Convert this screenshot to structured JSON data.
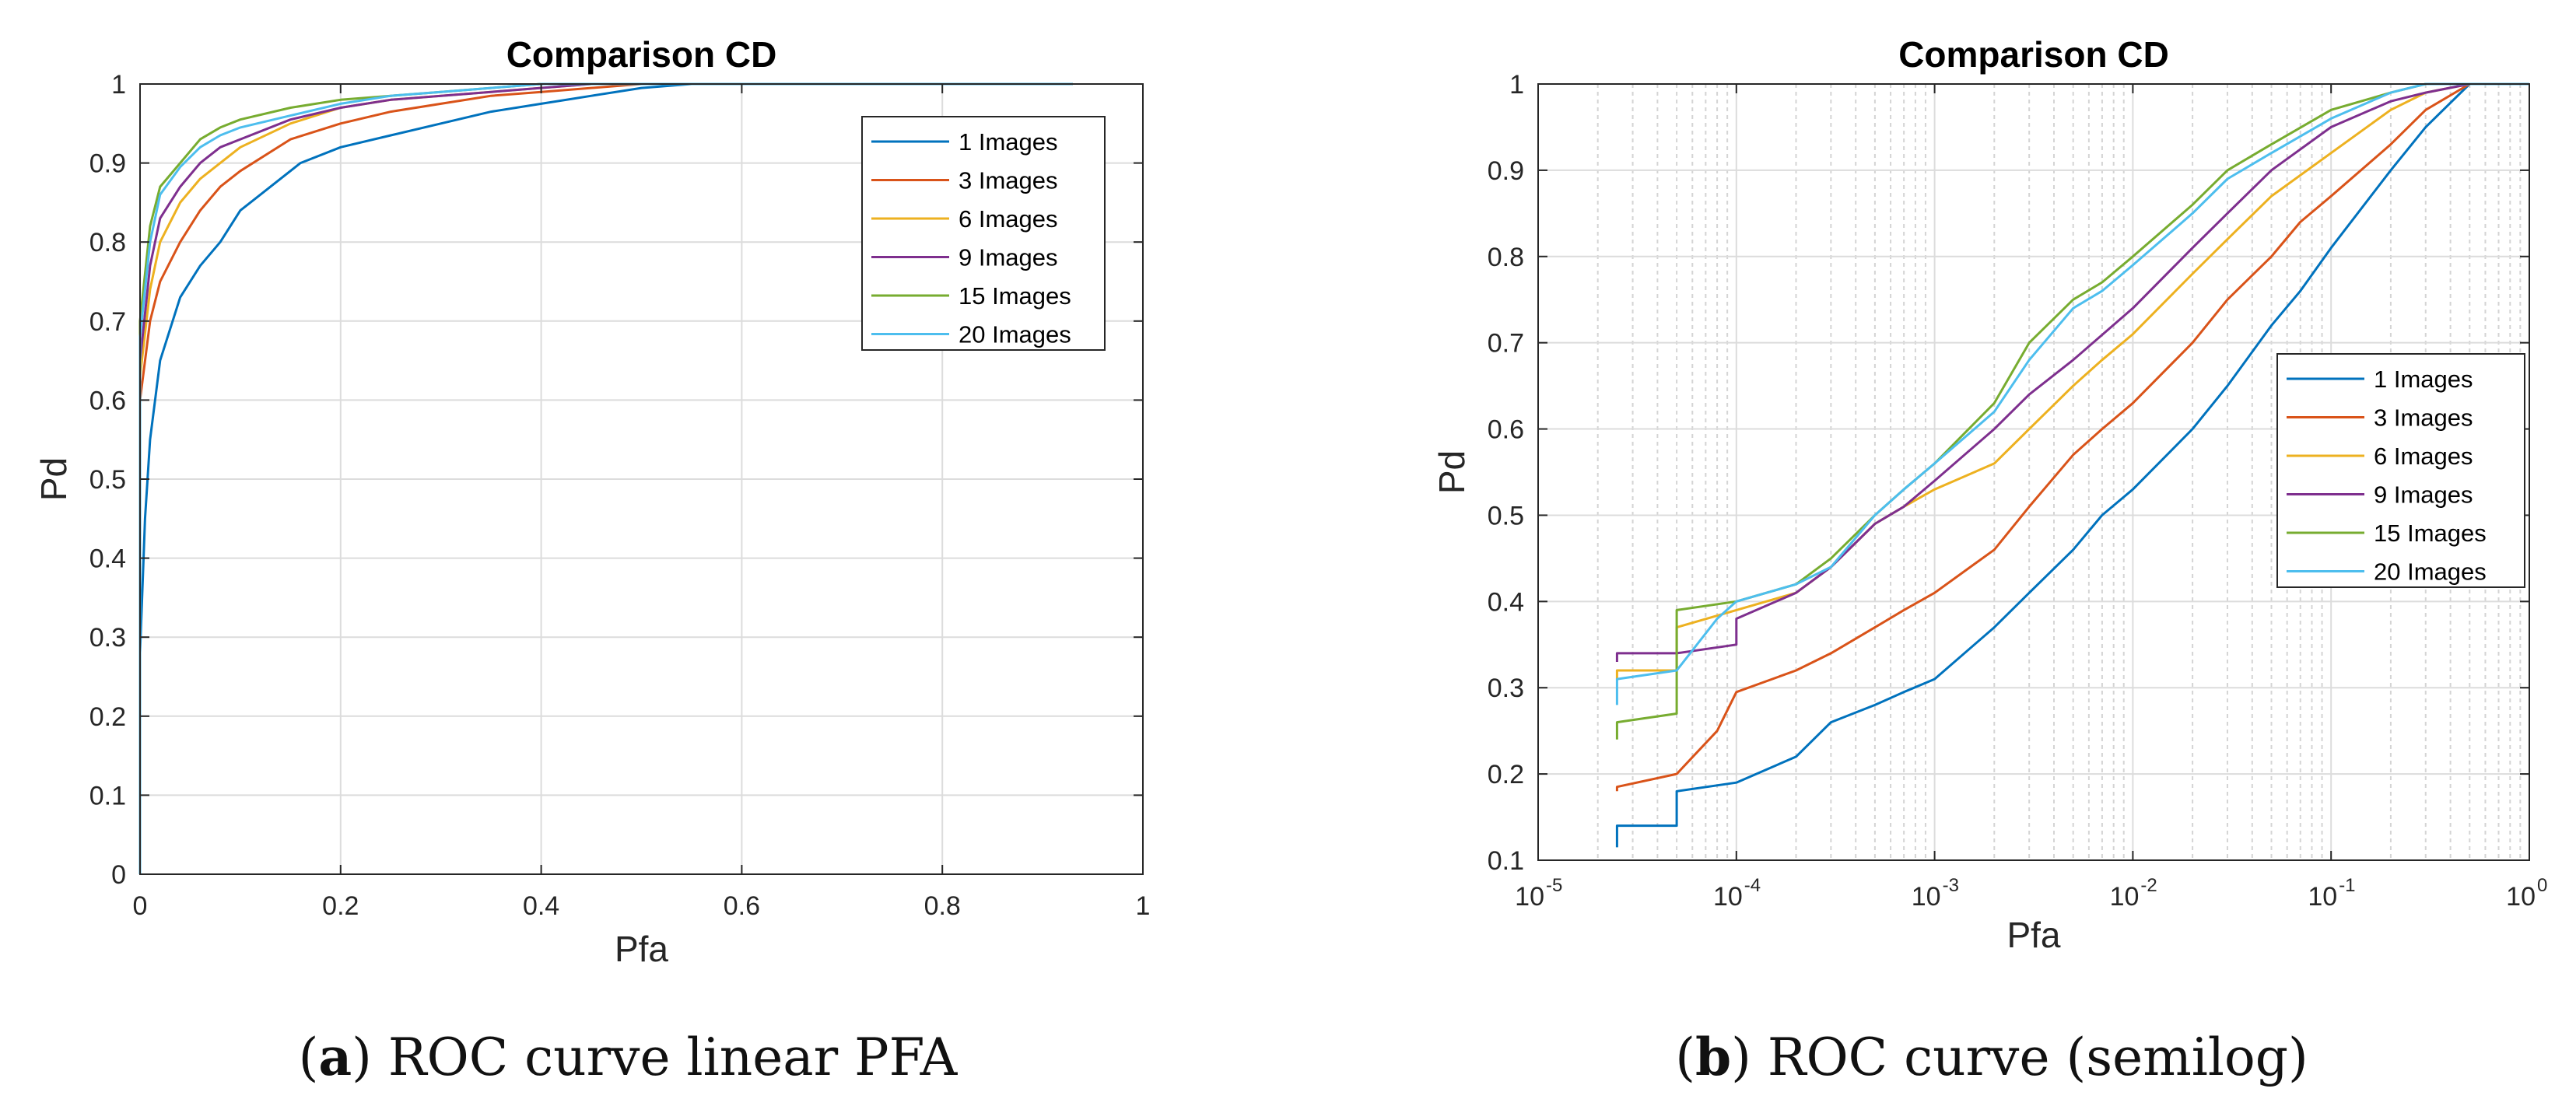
{
  "series_colors": [
    "#0072BD",
    "#D95319",
    "#EDB120",
    "#7E2F8E",
    "#77AC30",
    "#4DBEEE"
  ],
  "chart_data": [
    {
      "type": "line",
      "title": "Comparison CD",
      "xlabel": "Pfa",
      "ylabel": "Pd",
      "xscale": "linear",
      "xlim": [
        0,
        1
      ],
      "ylim": [
        0,
        1
      ],
      "xticks": [
        0,
        0.2,
        0.4,
        0.6,
        0.8,
        1
      ],
      "xtick_labels": [
        "0",
        "0.2",
        "0.4",
        "0.6",
        "0.8",
        "1"
      ],
      "yticks": [
        0,
        0.1,
        0.2,
        0.3,
        0.4,
        0.5,
        0.6,
        0.7,
        0.8,
        0.9,
        1
      ],
      "ytick_labels": [
        "0",
        "0.1",
        "0.2",
        "0.3",
        "0.4",
        "0.5",
        "0.6",
        "0.7",
        "0.8",
        "0.9",
        "1"
      ],
      "grid": true,
      "legend": "top-right",
      "series": [
        {
          "name": "1 Images",
          "x": [
            0,
            0,
            0.005,
            0.01,
            0.02,
            0.04,
            0.06,
            0.08,
            0.1,
            0.13,
            0.16,
            0.2,
            0.25,
            0.3,
            0.35,
            0.4,
            0.45,
            0.5,
            0.55,
            0.93
          ],
          "y": [
            0,
            0.28,
            0.45,
            0.55,
            0.65,
            0.73,
            0.77,
            0.8,
            0.84,
            0.87,
            0.9,
            0.92,
            0.935,
            0.95,
            0.965,
            0.975,
            0.985,
            0.995,
            1,
            1
          ]
        },
        {
          "name": "3 Images",
          "x": [
            0,
            0,
            0.01,
            0.02,
            0.04,
            0.06,
            0.08,
            0.1,
            0.15,
            0.2,
            0.25,
            0.3,
            0.35,
            0.4,
            0.5,
            0.93
          ],
          "y": [
            0,
            0.6,
            0.7,
            0.75,
            0.8,
            0.84,
            0.87,
            0.89,
            0.93,
            0.95,
            0.965,
            0.975,
            0.985,
            0.99,
            1,
            1
          ]
        },
        {
          "name": "6 Images",
          "x": [
            0,
            0,
            0.01,
            0.02,
            0.04,
            0.06,
            0.08,
            0.1,
            0.15,
            0.2,
            0.25,
            0.3,
            0.35,
            0.45,
            0.93
          ],
          "y": [
            0,
            0.63,
            0.74,
            0.8,
            0.85,
            0.88,
            0.9,
            0.92,
            0.95,
            0.97,
            0.98,
            0.985,
            0.99,
            1,
            1
          ]
        },
        {
          "name": "9 Images",
          "x": [
            0,
            0,
            0.01,
            0.02,
            0.04,
            0.06,
            0.08,
            0.1,
            0.15,
            0.2,
            0.25,
            0.3,
            0.35,
            0.45,
            0.93
          ],
          "y": [
            0,
            0.65,
            0.77,
            0.83,
            0.87,
            0.9,
            0.92,
            0.93,
            0.955,
            0.97,
            0.98,
            0.985,
            0.99,
            1,
            1
          ]
        },
        {
          "name": "15 Images",
          "x": [
            0,
            0,
            0.01,
            0.02,
            0.04,
            0.06,
            0.08,
            0.1,
            0.15,
            0.2,
            0.25,
            0.3,
            0.4,
            0.93
          ],
          "y": [
            0,
            0.7,
            0.82,
            0.87,
            0.9,
            0.93,
            0.945,
            0.955,
            0.97,
            0.98,
            0.985,
            0.99,
            1,
            1
          ]
        },
        {
          "name": "20 Images",
          "x": [
            0,
            0,
            0.01,
            0.02,
            0.04,
            0.06,
            0.08,
            0.1,
            0.15,
            0.2,
            0.25,
            0.3,
            0.4,
            0.93
          ],
          "y": [
            0,
            0.68,
            0.8,
            0.86,
            0.895,
            0.92,
            0.935,
            0.945,
            0.96,
            0.975,
            0.985,
            0.99,
            1,
            1
          ]
        }
      ],
      "caption": {
        "letter": "a",
        "text": ") ROC  curve linear PFA",
        "open": "("
      }
    },
    {
      "type": "line",
      "title": "Comparison CD",
      "xlabel": "Pfa",
      "ylabel": "Pd",
      "xscale": "log",
      "xlim": [
        1e-05,
        1
      ],
      "ylim": [
        0.1,
        1
      ],
      "xticks": [
        1e-05,
        0.0001,
        0.001,
        0.01,
        0.1,
        1
      ],
      "xtick_labels": [
        {
          "base": "10",
          "exp": "-5"
        },
        {
          "base": "10",
          "exp": "-4"
        },
        {
          "base": "10",
          "exp": "-3"
        },
        {
          "base": "10",
          "exp": "-2"
        },
        {
          "base": "10",
          "exp": "-1"
        },
        {
          "base": "10",
          "exp": "0"
        }
      ],
      "yticks": [
        0.1,
        0.2,
        0.3,
        0.4,
        0.5,
        0.6,
        0.7,
        0.8,
        0.9,
        1
      ],
      "ytick_labels": [
        "0.1",
        "0.2",
        "0.3",
        "0.4",
        "0.5",
        "0.6",
        "0.7",
        "0.8",
        "0.9",
        "1"
      ],
      "grid": true,
      "legend": "right",
      "series": [
        {
          "name": "1 Images",
          "x": [
            2.5e-05,
            2.5e-05,
            5e-05,
            5e-05,
            0.0001,
            0.0002,
            0.0003,
            0.0005,
            0.0007,
            0.001,
            0.002,
            0.003,
            0.005,
            0.007,
            0.01,
            0.02,
            0.03,
            0.05,
            0.07,
            0.1,
            0.2,
            0.3,
            0.5,
            1
          ],
          "y": [
            0.115,
            0.14,
            0.14,
            0.18,
            0.19,
            0.22,
            0.26,
            0.28,
            0.295,
            0.31,
            0.37,
            0.41,
            0.46,
            0.5,
            0.53,
            0.6,
            0.65,
            0.72,
            0.76,
            0.81,
            0.9,
            0.95,
            1,
            1
          ]
        },
        {
          "name": "3 Images",
          "x": [
            2.5e-05,
            2.5e-05,
            5e-05,
            8e-05,
            0.0001,
            0.0002,
            0.0003,
            0.0005,
            0.0007,
            0.001,
            0.002,
            0.003,
            0.005,
            0.007,
            0.01,
            0.02,
            0.03,
            0.05,
            0.07,
            0.1,
            0.2,
            0.3,
            0.5,
            1
          ],
          "y": [
            0.18,
            0.185,
            0.2,
            0.25,
            0.295,
            0.32,
            0.34,
            0.37,
            0.39,
            0.41,
            0.46,
            0.51,
            0.57,
            0.6,
            0.63,
            0.7,
            0.75,
            0.8,
            0.84,
            0.87,
            0.93,
            0.97,
            1,
            1
          ]
        },
        {
          "name": "6 Images",
          "x": [
            2.5e-05,
            2.5e-05,
            5e-05,
            5e-05,
            0.0001,
            0.0002,
            0.0003,
            0.0005,
            0.0007,
            0.001,
            0.002,
            0.003,
            0.005,
            0.007,
            0.01,
            0.02,
            0.03,
            0.05,
            0.1,
            0.2,
            0.3,
            0.5,
            1
          ],
          "y": [
            0.31,
            0.32,
            0.32,
            0.37,
            0.39,
            0.41,
            0.44,
            0.49,
            0.51,
            0.53,
            0.56,
            0.6,
            0.65,
            0.68,
            0.71,
            0.78,
            0.82,
            0.87,
            0.92,
            0.97,
            0.99,
            1,
            1
          ]
        },
        {
          "name": "9 Images",
          "x": [
            2.5e-05,
            2.5e-05,
            5e-05,
            0.0001,
            0.0001,
            0.0002,
            0.0003,
            0.0005,
            0.0007,
            0.001,
            0.002,
            0.003,
            0.005,
            0.01,
            0.02,
            0.03,
            0.05,
            0.1,
            0.2,
            0.3,
            0.5,
            1
          ],
          "y": [
            0.33,
            0.34,
            0.34,
            0.35,
            0.38,
            0.41,
            0.44,
            0.49,
            0.51,
            0.54,
            0.6,
            0.64,
            0.68,
            0.74,
            0.81,
            0.85,
            0.9,
            0.95,
            0.98,
            0.99,
            1,
            1
          ]
        },
        {
          "name": "15 Images",
          "x": [
            2.5e-05,
            2.5e-05,
            5e-05,
            5e-05,
            0.0001,
            0.0002,
            0.0003,
            0.0005,
            0.0007,
            0.001,
            0.002,
            0.003,
            0.005,
            0.007,
            0.01,
            0.02,
            0.03,
            0.05,
            0.1,
            0.2,
            0.3,
            0.5,
            1
          ],
          "y": [
            0.24,
            0.26,
            0.27,
            0.39,
            0.4,
            0.42,
            0.45,
            0.5,
            0.53,
            0.56,
            0.63,
            0.7,
            0.75,
            0.77,
            0.8,
            0.86,
            0.9,
            0.93,
            0.97,
            0.99,
            1,
            1,
            1
          ]
        },
        {
          "name": "20 Images",
          "x": [
            2.5e-05,
            2.5e-05,
            5e-05,
            8e-05,
            0.0001,
            0.0002,
            0.0003,
            0.0005,
            0.0007,
            0.001,
            0.002,
            0.003,
            0.005,
            0.007,
            0.01,
            0.02,
            0.03,
            0.05,
            0.1,
            0.2,
            0.3,
            0.5,
            1
          ],
          "y": [
            0.28,
            0.31,
            0.32,
            0.38,
            0.4,
            0.42,
            0.44,
            0.5,
            0.53,
            0.56,
            0.62,
            0.68,
            0.74,
            0.76,
            0.79,
            0.85,
            0.89,
            0.92,
            0.96,
            0.99,
            1,
            1,
            1
          ]
        }
      ],
      "caption": {
        "letter": "b",
        "text": ") ROC curve (semilog)",
        "open": "("
      }
    }
  ]
}
